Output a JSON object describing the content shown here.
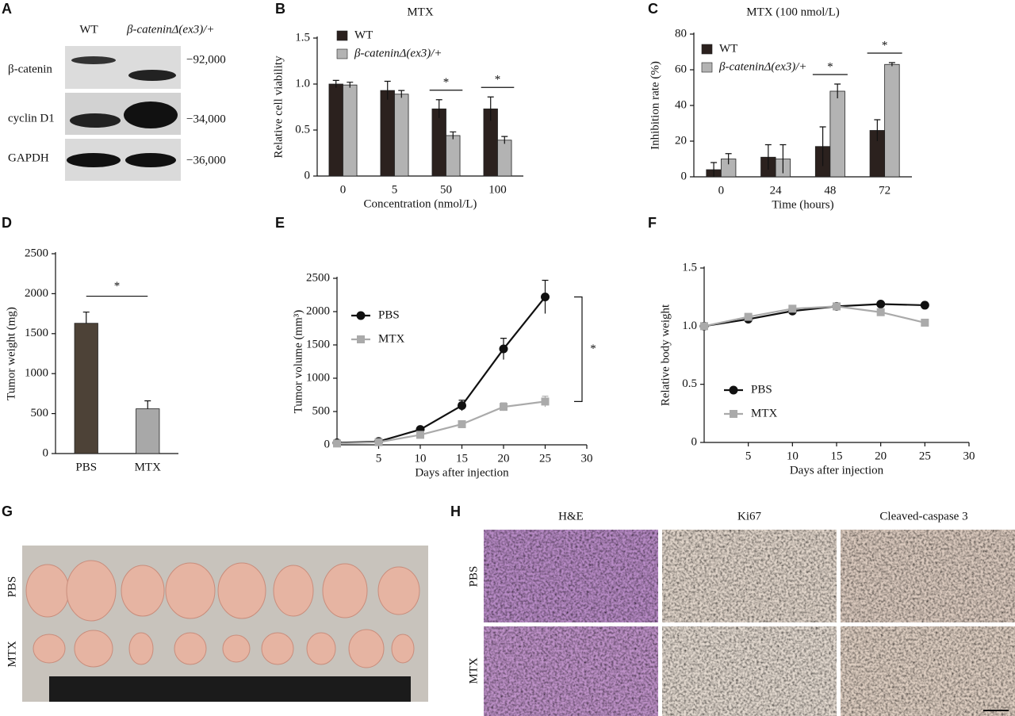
{
  "blot": {
    "panel": "A",
    "lanes": [
      "WT",
      "β-cateninΔ(ex3)/+"
    ],
    "rows": [
      "β-catenin",
      "cyclin D1",
      "GAPDH"
    ],
    "sizes": [
      "−92,000",
      "−34,000",
      "−36,000"
    ]
  },
  "chart_data": [
    {
      "type": "bar",
      "panel": "B",
      "title": "MTX",
      "y_label": "Relative cell viability",
      "x_label": "Concentration (nmol/L)",
      "categories": [
        "0",
        "5",
        "50",
        "100"
      ],
      "series": [
        {
          "name": "WT",
          "color": "#2b211e",
          "values": [
            1.0,
            0.93,
            0.73,
            0.73
          ],
          "errors": [
            0.04,
            0.1,
            0.1,
            0.13
          ]
        },
        {
          "name": "β-cateninΔ(ex3)/+",
          "color": "#b3b3b3",
          "values": [
            0.99,
            0.89,
            0.44,
            0.39
          ],
          "errors": [
            0.03,
            0.04,
            0.04,
            0.04
          ]
        }
      ],
      "annotations": [
        null,
        null,
        "*",
        "*"
      ],
      "ylim": [
        0,
        1.5
      ],
      "yticks": [
        0,
        0.5,
        {
          "value": 1,
          "label": "1.0"
        },
        1.5
      ]
    },
    {
      "type": "bar",
      "panel": "C",
      "title": "MTX (100 nmol/L)",
      "y_label": "Inhibition rate (%)",
      "x_label": "Time (hours)",
      "categories": [
        "0",
        "24",
        "48",
        "72"
      ],
      "series": [
        {
          "name": "WT",
          "color": "#2b211e",
          "values": [
            4,
            11,
            17,
            26
          ],
          "errors": [
            4,
            7,
            11,
            6
          ]
        },
        {
          "name": "β-cateninΔ(ex3)/+",
          "color": "#b3b3b3",
          "values": [
            10,
            10,
            48,
            63
          ],
          "errors": [
            3,
            8,
            4,
            1
          ]
        }
      ],
      "annotations": [
        null,
        null,
        "*",
        "*"
      ],
      "ylim": [
        0,
        80
      ],
      "yticks": [
        0,
        20,
        40,
        60,
        80
      ]
    },
    {
      "type": "bar",
      "panel": "D",
      "y_label": "Tumor weight (mg)",
      "categories": [
        "PBS",
        "MTX"
      ],
      "values": [
        1630,
        560
      ],
      "errors": [
        140,
        100
      ],
      "colors": [
        "#4d4237",
        "#a8a8a8"
      ],
      "annotation": "*",
      "ylim": [
        0,
        2500
      ],
      "yticks": [
        0,
        500,
        1000,
        1500,
        2000,
        2500
      ]
    },
    {
      "type": "line",
      "panel": "E",
      "y_label": "Tumor volume (mm³)",
      "x_label": "Days after injection",
      "x": [
        0,
        5,
        10,
        15,
        20,
        25
      ],
      "series": [
        {
          "name": "PBS",
          "color": "#111111",
          "marker": "circle",
          "values": [
            30,
            50,
            230,
            590,
            1440,
            2220
          ],
          "errors": [
            0,
            0,
            0,
            80,
            160,
            250
          ]
        },
        {
          "name": "MTX",
          "color": "#aaaaaa",
          "marker": "square",
          "values": [
            20,
            40,
            150,
            310,
            570,
            650
          ],
          "errors": [
            0,
            0,
            0,
            30,
            60,
            80
          ]
        }
      ],
      "annotation": "*",
      "xlim": [
        0,
        30
      ],
      "xticks": [
        5,
        10,
        15,
        20,
        25,
        30
      ],
      "ylim": [
        0,
        2500
      ],
      "yticks": [
        0,
        500,
        1000,
        1500,
        2000,
        2500
      ]
    },
    {
      "type": "line",
      "panel": "F",
      "y_label": "Relative body weight",
      "x_label": "Days after injection",
      "x": [
        0,
        5,
        10,
        15,
        20,
        25
      ],
      "series": [
        {
          "name": "PBS",
          "color": "#111111",
          "marker": "circle",
          "values": [
            1.0,
            1.06,
            1.13,
            1.17,
            1.19,
            1.18
          ],
          "errors": [
            0,
            0,
            0,
            0,
            0,
            0
          ]
        },
        {
          "name": "MTX",
          "color": "#aaaaaa",
          "marker": "square",
          "values": [
            1.0,
            1.08,
            1.15,
            1.17,
            1.12,
            1.03
          ],
          "errors": [
            0,
            0,
            0,
            0,
            0.02,
            0.02
          ]
        }
      ],
      "xlim": [
        0,
        30
      ],
      "xticks": [
        5,
        10,
        15,
        20,
        25,
        30
      ],
      "ylim": [
        0,
        1.5
      ],
      "yticks": [
        0,
        0.5,
        {
          "value": 1,
          "label": "1.0"
        },
        1.5
      ]
    }
  ],
  "photos": {
    "panel": "G",
    "rows": [
      "PBS",
      "MTX"
    ]
  },
  "histology": {
    "panel": "H",
    "columns": [
      "H&E",
      "Ki67",
      "Cleaved-caspase 3"
    ],
    "rows": [
      "PBS",
      "MTX"
    ]
  }
}
